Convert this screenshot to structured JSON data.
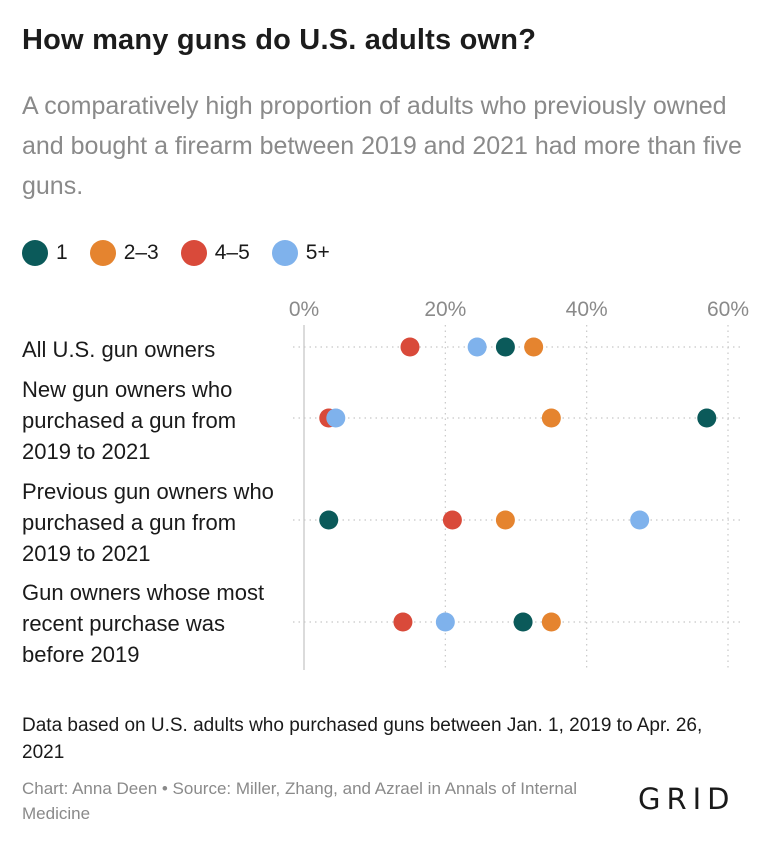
{
  "header": {
    "title": "How many guns do U.S. adults own?",
    "subtitle": "A comparatively high proportion of adults who previously owned and bought a firearm between 2019 and 2021 had more than five guns."
  },
  "legend": [
    {
      "label": "1",
      "color": "#0b5a5a"
    },
    {
      "label": "2–3",
      "color": "#e5842f"
    },
    {
      "label": "4–5",
      "color": "#d94a3a"
    },
    {
      "label": "5+",
      "color": "#7fb2ec"
    }
  ],
  "chart_data": {
    "type": "scatter",
    "title": "How many guns do U.S. adults own?",
    "xlim": [
      0,
      60
    ],
    "x_ticks": [
      0,
      20,
      40,
      60
    ],
    "x_tick_labels": [
      "0%",
      "20%",
      "40%",
      "60%"
    ],
    "grid": true,
    "legend_position": "top-left",
    "categories": [
      "All U.S. gun owners",
      "New gun owners who purchased a gun from 2019 to 2021",
      "Previous gun owners who purchased a gun from 2019 to 2021",
      "Gun owners whose most recent purchase was before 2019"
    ],
    "series": [
      {
        "name": "1",
        "color": "#0b5a5a",
        "values": [
          28.5,
          57.0,
          3.5,
          31.0
        ]
      },
      {
        "name": "2–3",
        "color": "#e5842f",
        "values": [
          32.5,
          35.0,
          28.5,
          35.0
        ]
      },
      {
        "name": "4–5",
        "color": "#d94a3a",
        "values": [
          15.0,
          3.5,
          21.0,
          14.0
        ]
      },
      {
        "name": "5+",
        "color": "#7fb2ec",
        "values": [
          24.5,
          4.5,
          47.5,
          20.0
        ]
      }
    ]
  },
  "footer": {
    "note": "Data based on U.S. adults who purchased guns between Jan. 1, 2019 to Apr. 26, 2021",
    "credit": "Chart: Anna Deen • Source: Miller, Zhang, and Azrael in Annals of Internal Medicine",
    "brand": "GRID"
  }
}
